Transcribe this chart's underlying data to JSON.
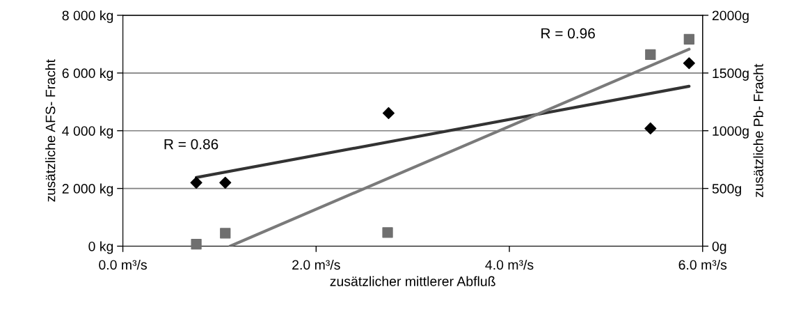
{
  "chart_data": {
    "type": "scatter",
    "xlabel": "zusätzlicher mittlerer Abfluß",
    "ylabel": "zusätzliche AFS- Fracht",
    "y2label": "zusätzliche Pb- Fracht",
    "series": [
      {
        "marker": "diamond",
        "color": "#000000",
        "x": [
          0.76,
          1.06,
          2.75,
          5.46,
          5.86
        ],
        "values": [
          2200,
          2200,
          4610,
          4080,
          6340
        ]
      },
      {
        "marker": "square",
        "color": "#6f6f6f",
        "axis": "y2",
        "x": [
          0.76,
          1.06,
          2.74,
          5.46,
          5.86
        ],
        "values": [
          17,
          112,
          118,
          1659,
          1793
        ]
      },
      {
        "type": "line",
        "color": "#333333",
        "x": [
          0.76,
          5.86
        ],
        "values": [
          2380,
          5540
        ]
      },
      {
        "type": "line",
        "color": "#7a7a7a",
        "axis": "y2",
        "x": [
          1.11,
          5.86
        ],
        "values": [
          0,
          1706
        ]
      }
    ],
    "annotations": [
      "R = 0.86",
      "R = 0.96"
    ],
    "xlim": [
      0,
      6
    ],
    "xticks": [
      {
        "value": 0,
        "label": "0.0 m³/s"
      },
      {
        "value": 2,
        "label": "2.0 m³/s"
      },
      {
        "value": 4,
        "label": "4.0 m³/s"
      },
      {
        "value": 6,
        "label": "6.0 m³/s"
      }
    ],
    "ylim": [
      0,
      8000
    ],
    "yticks": [
      {
        "value": 0,
        "label": "0 kg"
      },
      {
        "value": 2000,
        "label": "2 000 kg"
      },
      {
        "value": 4000,
        "label": "4 000 kg"
      },
      {
        "value": 6000,
        "label": "6 000 kg"
      },
      {
        "value": 8000,
        "label": "8 000 kg"
      }
    ],
    "y2lim": [
      0,
      2000
    ],
    "y2ticks": [
      {
        "value": 0,
        "label": "0g"
      },
      {
        "value": 500,
        "label": "500g"
      },
      {
        "value": 1000,
        "label": "1000g"
      },
      {
        "value": 1500,
        "label": "1500g"
      },
      {
        "value": 2000,
        "label": "2000g"
      }
    ],
    "grid": "y"
  }
}
